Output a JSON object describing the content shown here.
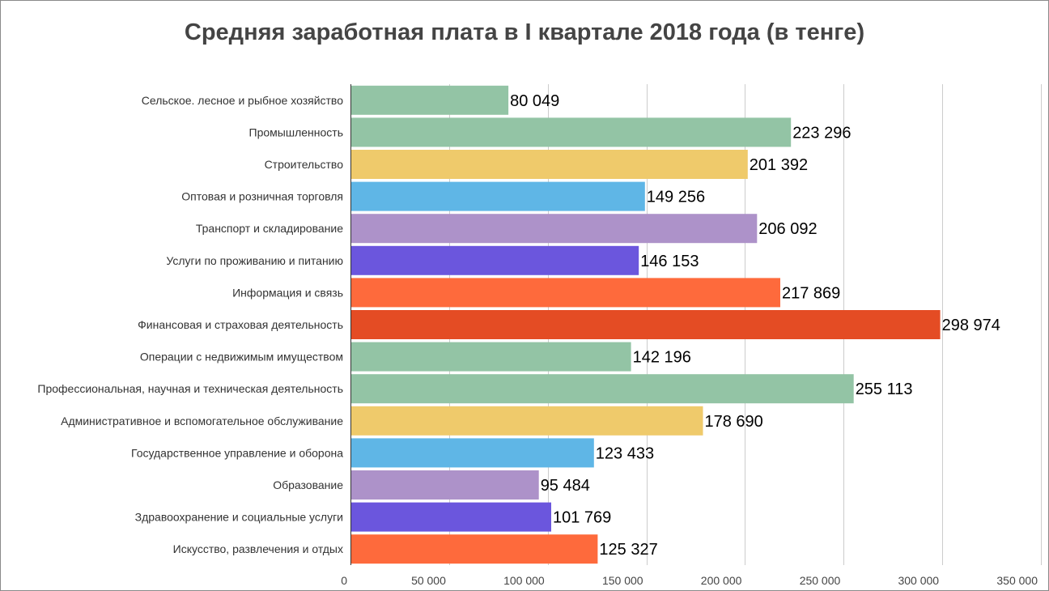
{
  "chart_data": {
    "type": "bar",
    "orientation": "horizontal",
    "title": "Средняя заработная плата в I квартале 2018 года (в тенге)",
    "xlabel": "",
    "ylabel": "",
    "xlim": [
      0,
      350000
    ],
    "grid": true,
    "legend": "none",
    "categories": [
      "Сельское. лесное и рыбное хозяйство",
      "Промышленность",
      "Строительство",
      "Оптовая и розничная торговля",
      "Транспорт и складирование",
      "Услуги по проживанию и питанию",
      "Информация и связь",
      "Финансовая и страховая деятельность",
      "Операции с недвижимым имуществом",
      "Профессиональная, научная и техническая деятельность",
      "Административное и вспомогательное обслуживание",
      "Государственное управление и оборона",
      "Образование",
      "Здравоохранение и социальные услуги",
      "Искусство, развлечения и отдых"
    ],
    "values": [
      80049,
      223296,
      201392,
      149256,
      206092,
      146153,
      217869,
      298974,
      142196,
      255113,
      178690,
      123433,
      95484,
      101769,
      125327
    ],
    "value_labels": [
      "80 049",
      "223 296",
      "201 392",
      "149 256",
      "206 092",
      "146 153",
      "217 869",
      "298 974",
      "142 196",
      "255 113",
      "178 690",
      "123 433",
      "95 484",
      "101 769",
      "125 327"
    ],
    "bar_colors": [
      "#93c4a5",
      "#93c4a5",
      "#efca6b",
      "#5fb6e6",
      "#ad92c9",
      "#6b56dd",
      "#fe6a3c",
      "#e44c24",
      "#93c4a5",
      "#93c4a5",
      "#efca6b",
      "#5fb6e6",
      "#ad92c9",
      "#6b56dd",
      "#fe6a3c"
    ],
    "x_ticks": [
      0,
      50000,
      100000,
      150000,
      200000,
      250000,
      300000,
      350000
    ],
    "x_tick_labels": [
      "0",
      "50 000",
      "100 000",
      "150 000",
      "200 000",
      "250 000",
      "300 000",
      "350 000"
    ]
  }
}
